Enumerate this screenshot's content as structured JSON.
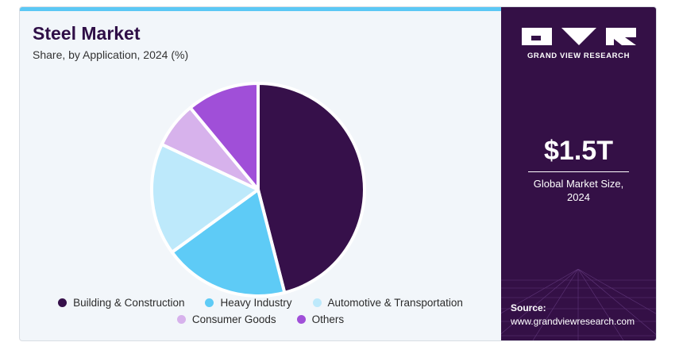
{
  "header": {
    "title": "Steel Market",
    "subtitle": "Share, by Application, 2024 (%)"
  },
  "chart_data": {
    "type": "pie",
    "title": "Steel Market",
    "subtitle": "Share, by Application, 2024 (%)",
    "categories": [
      "Building & Construction",
      "Heavy Industry",
      "Automotive & Transportation",
      "Consumer Goods",
      "Others"
    ],
    "values": [
      46,
      19,
      17,
      7,
      11
    ],
    "colors": [
      "#36104a",
      "#5ecbf6",
      "#bde9fb",
      "#d7b2ec",
      "#a04fd8"
    ],
    "start": "12 o'clock, clockwise",
    "legend_position": "bottom"
  },
  "legend": {
    "items": [
      {
        "label": "Building & Construction",
        "color": "#36104a"
      },
      {
        "label": "Heavy Industry",
        "color": "#5ecbf6"
      },
      {
        "label": "Automotive & Transportation",
        "color": "#bde9fb"
      },
      {
        "label": "Consumer Goods",
        "color": "#d7b2ec"
      },
      {
        "label": "Others",
        "color": "#a04fd8"
      }
    ]
  },
  "sidebar": {
    "brand_name": "GRAND VIEW RESEARCH",
    "market_size_value": "$1.5T",
    "market_size_label": "Global Market Size, 2024",
    "source_label": "Source:",
    "source_url": "www.grandviewresearch.com"
  }
}
